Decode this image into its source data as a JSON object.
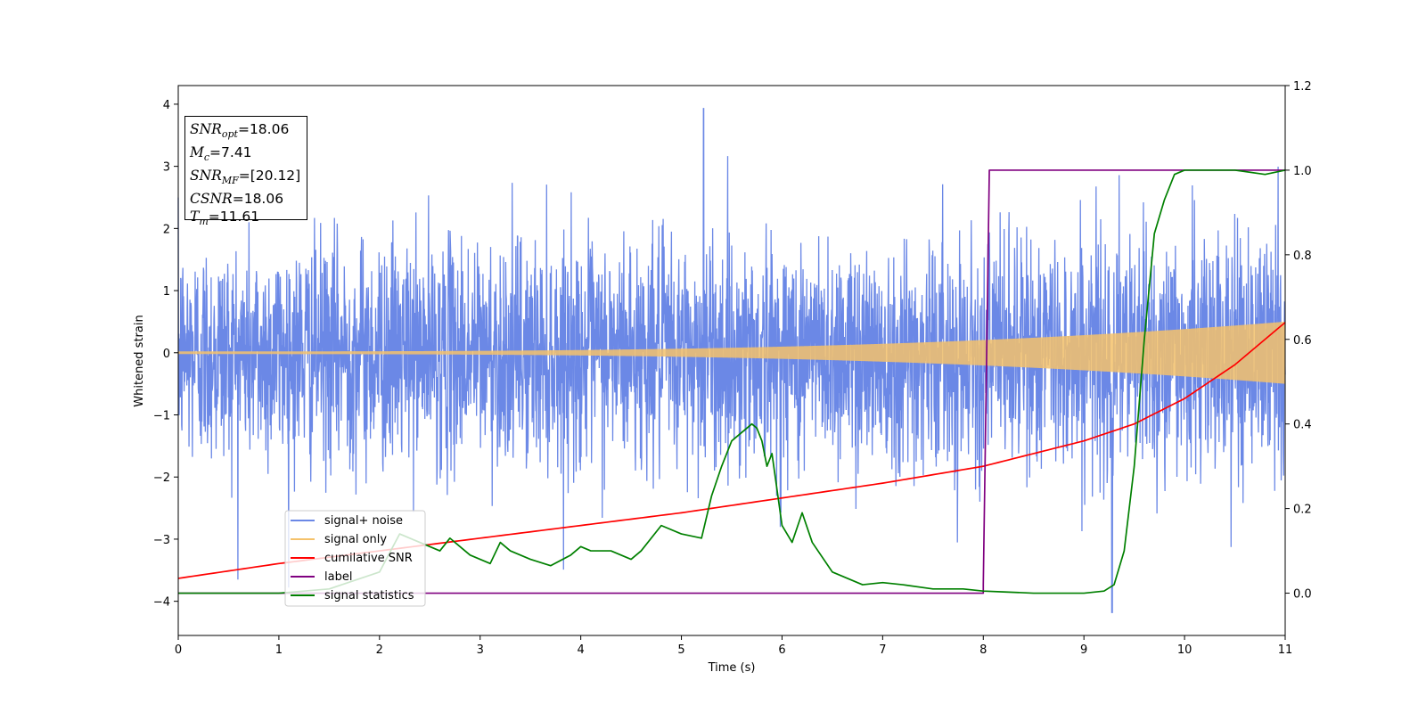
{
  "chart_data": {
    "type": "line",
    "xlabel": "Time (s)",
    "ylabel": "Whitened strain",
    "xlim": [
      0,
      11
    ],
    "ylim": [
      -4.55,
      4.3
    ],
    "y2lim": [
      -0.1,
      1.2
    ],
    "x_ticks": [
      "0",
      "1",
      "2",
      "3",
      "4",
      "5",
      "6",
      "7",
      "8",
      "9",
      "10",
      "11"
    ],
    "y_ticks": [
      "4",
      "3",
      "2",
      "1",
      "0",
      "−1",
      "−2",
      "−3",
      "−4"
    ],
    "y2_ticks": [
      "1.2",
      "1.0",
      "0.8",
      "0.6",
      "0.4",
      "0.2",
      "0.0"
    ],
    "legend_position": "lower-left",
    "annotation": {
      "snr_opt": {
        "name": "SNR",
        "sub": "opt",
        "value": "=18.06"
      },
      "mc": {
        "name": "M",
        "sub": "c",
        "value": "=7.41"
      },
      "snr_mf": {
        "name": "SNR",
        "sub": "MF",
        "value": "=[20.12]"
      },
      "csnr": {
        "name": "CSNR",
        "value": "=18.06"
      },
      "tm": {
        "name": "T",
        "sub": "m",
        "value": "=11.61"
      }
    },
    "series": [
      {
        "name": "signal+ noise",
        "color": "#6b88e6",
        "axis": "left",
        "description": "noise envelope",
        "envelope_std": 0.9,
        "peak_max": 3.93,
        "peak_min": -4.18
      },
      {
        "name": "signal only",
        "color": "#f5c26b",
        "axis": "left",
        "amplitude_start": 0.02,
        "amplitude_end": 0.5
      },
      {
        "name": "cumilative SNR",
        "color": "#ff0000",
        "axis": "right",
        "x": [
          0,
          1,
          2,
          3,
          4,
          5,
          6,
          7,
          8,
          9,
          9.5,
          10,
          10.5,
          11
        ],
        "y": [
          0.035,
          0.07,
          0.1,
          0.13,
          0.16,
          0.19,
          0.225,
          0.26,
          0.3,
          0.36,
          0.4,
          0.46,
          0.54,
          0.64
        ]
      },
      {
        "name": "label",
        "color": "#800080",
        "axis": "right",
        "x": [
          0,
          8.0,
          8.0,
          8.06,
          11
        ],
        "y": [
          0.0,
          0.0,
          0.02,
          1.0,
          1.0
        ]
      },
      {
        "name": "signal statistics",
        "color": "#008000",
        "axis": "right",
        "x": [
          0,
          1,
          1.5,
          2,
          2.2,
          2.4,
          2.6,
          2.7,
          2.9,
          3.1,
          3.2,
          3.3,
          3.5,
          3.7,
          3.9,
          4.0,
          4.1,
          4.3,
          4.5,
          4.6,
          4.8,
          5.0,
          5.2,
          5.3,
          5.4,
          5.5,
          5.6,
          5.7,
          5.75,
          5.8,
          5.85,
          5.9,
          6.0,
          6.1,
          6.2,
          6.3,
          6.5,
          6.8,
          7.0,
          7.2,
          7.5,
          7.8,
          8.0,
          8.2,
          8.5,
          9.0,
          9.2,
          9.3,
          9.4,
          9.5,
          9.6,
          9.7,
          9.8,
          9.9,
          10.0,
          10.2,
          10.5,
          10.8,
          11
        ],
        "y": [
          0.0,
          0.0,
          0.01,
          0.05,
          0.14,
          0.12,
          0.1,
          0.13,
          0.09,
          0.07,
          0.12,
          0.1,
          0.08,
          0.065,
          0.09,
          0.11,
          0.1,
          0.1,
          0.08,
          0.1,
          0.16,
          0.14,
          0.13,
          0.23,
          0.3,
          0.36,
          0.38,
          0.4,
          0.39,
          0.36,
          0.3,
          0.33,
          0.16,
          0.12,
          0.19,
          0.12,
          0.05,
          0.02,
          0.025,
          0.02,
          0.01,
          0.01,
          0.005,
          0.003,
          0.0,
          0.0,
          0.005,
          0.02,
          0.1,
          0.3,
          0.6,
          0.85,
          0.93,
          0.99,
          1.0,
          1.0,
          1.0,
          0.99,
          1.0
        ]
      }
    ]
  }
}
